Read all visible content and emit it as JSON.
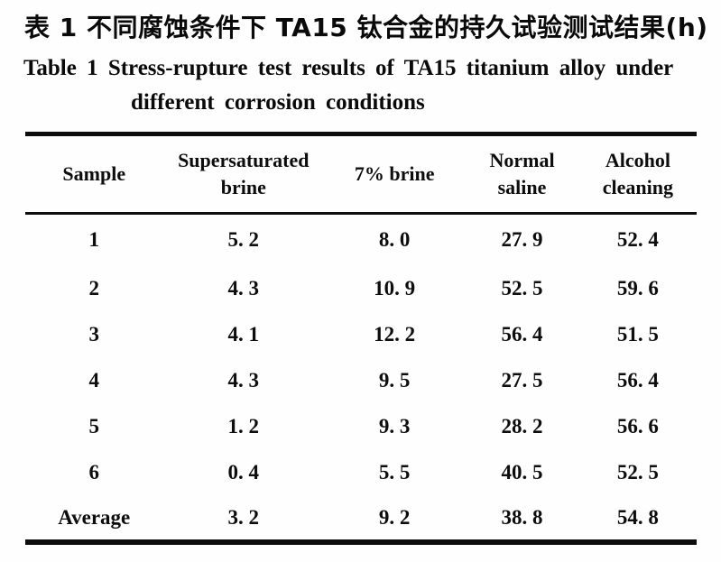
{
  "titles": {
    "zh": "表 1  不同腐蚀条件下 TA15 钛合金的持久试验测试结果(h)",
    "en_line1": "Table 1   Stress-rupture test results of TA15 titanium alloy under",
    "en_line2": "different corrosion conditions"
  },
  "table": {
    "columns": [
      "Sample",
      "Supersaturated brine",
      "7% brine",
      "Normal saline",
      "Alcohol cleaning"
    ],
    "rows": [
      {
        "sample": "1",
        "values": [
          "5. 2",
          "8. 0",
          "27. 9",
          "52. 4"
        ]
      },
      {
        "sample": "2",
        "values": [
          "4. 3",
          "10. 9",
          "52. 5",
          "59. 6"
        ]
      },
      {
        "sample": "3",
        "values": [
          "4. 1",
          "12. 2",
          "56. 4",
          "51. 5"
        ]
      },
      {
        "sample": "4",
        "values": [
          "4. 3",
          "9. 5",
          "27. 5",
          "56. 4"
        ]
      },
      {
        "sample": "5",
        "values": [
          "1. 2",
          "9. 3",
          "28. 2",
          "56. 6"
        ]
      },
      {
        "sample": "6",
        "values": [
          "0. 4",
          "5. 5",
          "40. 5",
          "52. 5"
        ]
      },
      {
        "sample": "Average",
        "values": [
          "3. 2",
          "9. 2",
          "38. 8",
          "54. 8"
        ]
      }
    ]
  },
  "chart_data": {
    "type": "table",
    "title": "Stress-rupture test results of TA15 titanium alloy under different corrosion conditions (h)",
    "columns": [
      "Sample",
      "Supersaturated brine",
      "7% brine",
      "Normal saline",
      "Alcohol cleaning"
    ],
    "rows": [
      [
        "1",
        5.2,
        8.0,
        27.9,
        52.4
      ],
      [
        "2",
        4.3,
        10.9,
        52.5,
        59.6
      ],
      [
        "3",
        4.1,
        12.2,
        56.4,
        51.5
      ],
      [
        "4",
        4.3,
        9.5,
        27.5,
        56.4
      ],
      [
        "5",
        1.2,
        9.3,
        28.2,
        56.6
      ],
      [
        "6",
        0.4,
        5.5,
        40.5,
        52.5
      ],
      [
        "Average",
        3.2,
        9.2,
        38.8,
        54.8
      ]
    ]
  },
  "colors": {
    "text": "#0a0a0a",
    "rule": "#0d0d0d",
    "background": "#fefefe"
  }
}
